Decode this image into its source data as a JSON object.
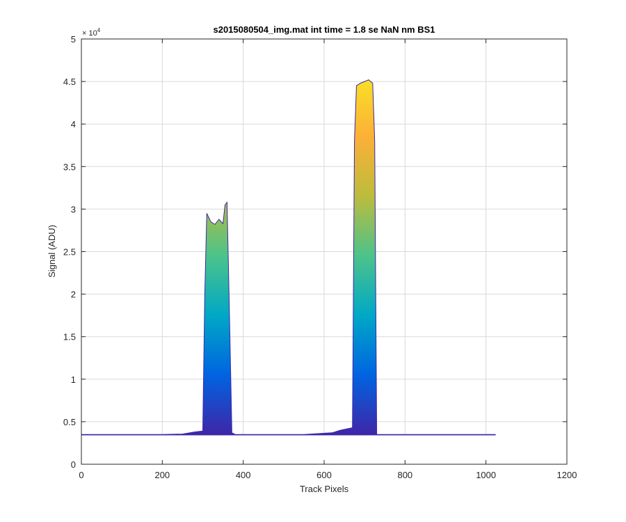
{
  "chart_data": {
    "type": "area",
    "title": "s2015080504_img.mat int time = 1.8 se  NaN nm BS1",
    "xlabel": "Track Pixels",
    "ylabel": "Signal (ADU)",
    "xlim": [
      0,
      1200
    ],
    "ylim": [
      0,
      50000
    ],
    "x_ticks": [
      "0",
      "200",
      "400",
      "600",
      "800",
      "1000",
      "1200"
    ],
    "y_ticks": [
      "0",
      "0.5",
      "1",
      "1.5",
      "2",
      "2.5",
      "3",
      "3.5",
      "4",
      "4.5",
      "5"
    ],
    "y_exponent_label": "× 10",
    "y_exponent_power": "4",
    "grid": true,
    "colormap": [
      "#3e26a8",
      "#0064e1",
      "#00a8c6",
      "#4cc38a",
      "#bcbc3c",
      "#fcb037",
      "#f9e125"
    ],
    "series": [
      {
        "x": [
          0,
          100,
          200,
          250,
          280,
          300,
          305,
          310,
          320,
          330,
          340,
          350,
          355,
          360,
          365,
          372,
          380,
          450,
          550,
          620,
          640,
          660,
          670,
          675,
          680,
          690,
          700,
          710,
          720,
          725,
          730,
          740,
          800,
          900,
          1024
        ],
        "y": [
          3500,
          3500,
          3500,
          3550,
          3800,
          3900,
          20000,
          29500,
          28500,
          28200,
          28800,
          28300,
          30500,
          30800,
          20000,
          3700,
          3500,
          3500,
          3500,
          3700,
          4000,
          4200,
          4300,
          38000,
          44500,
          44800,
          45000,
          45200,
          44800,
          38000,
          3500,
          3500,
          3500,
          3500,
          3500
        ]
      }
    ]
  }
}
